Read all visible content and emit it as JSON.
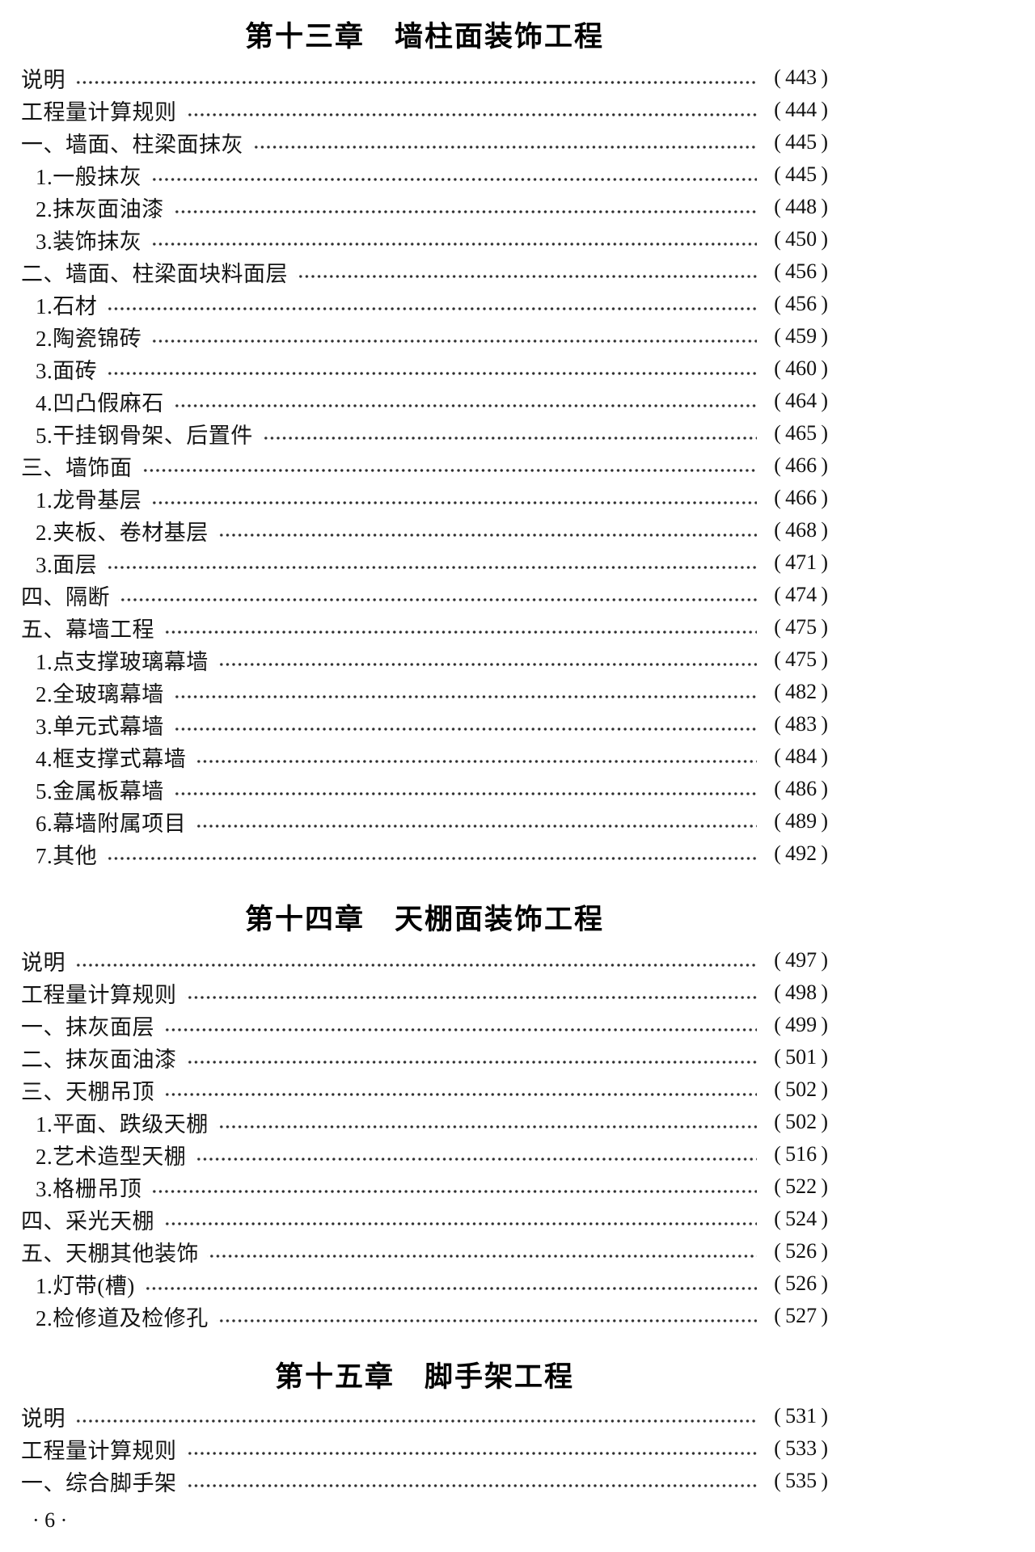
{
  "colors": {
    "background": "#ffffff",
    "text": "#141414",
    "dot_leader": "#2f2f2f"
  },
  "footer": {
    "page_label": "· 6 ·"
  },
  "sections": [
    {
      "title": "第十三章　墙柱面装饰工程",
      "entries": [
        {
          "label": "说明",
          "page": "443",
          "level": 0
        },
        {
          "label": "工程量计算规则",
          "page": "444",
          "level": 0
        },
        {
          "label": "一、墙面、柱梁面抹灰",
          "page": "445",
          "level": 0
        },
        {
          "label": "1.一般抹灰",
          "page": "445",
          "level": 1
        },
        {
          "label": "2.抹灰面油漆",
          "page": "448",
          "level": 1
        },
        {
          "label": "3.装饰抹灰",
          "page": "450",
          "level": 1
        },
        {
          "label": "二、墙面、柱梁面块料面层",
          "page": "456",
          "level": 0
        },
        {
          "label": "1.石材",
          "page": "456",
          "level": 1
        },
        {
          "label": "2.陶瓷锦砖",
          "page": "459",
          "level": 1
        },
        {
          "label": "3.面砖",
          "page": "460",
          "level": 1
        },
        {
          "label": "4.凹凸假麻石",
          "page": "464",
          "level": 1
        },
        {
          "label": "5.干挂钢骨架、后置件",
          "page": "465",
          "level": 1
        },
        {
          "label": "三、墙饰面",
          "page": "466",
          "level": 0
        },
        {
          "label": "1.龙骨基层",
          "page": "466",
          "level": 1
        },
        {
          "label": "2.夹板、卷材基层",
          "page": "468",
          "level": 1
        },
        {
          "label": "3.面层",
          "page": "471",
          "level": 1
        },
        {
          "label": "四、隔断",
          "page": "474",
          "level": 0
        },
        {
          "label": "五、幕墙工程",
          "page": "475",
          "level": 0
        },
        {
          "label": "1.点支撑玻璃幕墙",
          "page": "475",
          "level": 1
        },
        {
          "label": "2.全玻璃幕墙",
          "page": "482",
          "level": 1
        },
        {
          "label": "3.单元式幕墙",
          "page": "483",
          "level": 1
        },
        {
          "label": "4.框支撑式幕墙",
          "page": "484",
          "level": 1
        },
        {
          "label": "5.金属板幕墙",
          "page": "486",
          "level": 1
        },
        {
          "label": "6.幕墙附属项目",
          "page": "489",
          "level": 1
        },
        {
          "label": "7.其他",
          "page": "492",
          "level": 1
        }
      ]
    },
    {
      "title": "第十四章　天棚面装饰工程",
      "entries": [
        {
          "label": "说明",
          "page": "497",
          "level": 0
        },
        {
          "label": "工程量计算规则",
          "page": "498",
          "level": 0
        },
        {
          "label": "一、抹灰面层",
          "page": "499",
          "level": 0
        },
        {
          "label": "二、抹灰面油漆",
          "page": "501",
          "level": 0
        },
        {
          "label": "三、天棚吊顶",
          "page": "502",
          "level": 0
        },
        {
          "label": "1.平面、跌级天棚",
          "page": "502",
          "level": 1
        },
        {
          "label": "2.艺术造型天棚",
          "page": "516",
          "level": 1
        },
        {
          "label": "3.格栅吊顶",
          "page": "522",
          "level": 1
        },
        {
          "label": "四、采光天棚",
          "page": "524",
          "level": 0
        },
        {
          "label": "五、天棚其他装饰",
          "page": "526",
          "level": 0
        },
        {
          "label": "1.灯带(槽)",
          "page": "526",
          "level": 1
        },
        {
          "label": "2.检修道及检修孔",
          "page": "527",
          "level": 1
        }
      ]
    },
    {
      "title": "第十五章　脚手架工程",
      "entries": [
        {
          "label": "说明",
          "page": "531",
          "level": 0
        },
        {
          "label": "工程量计算规则",
          "page": "533",
          "level": 0
        },
        {
          "label": "一、综合脚手架",
          "page": "535",
          "level": 0
        }
      ]
    }
  ]
}
